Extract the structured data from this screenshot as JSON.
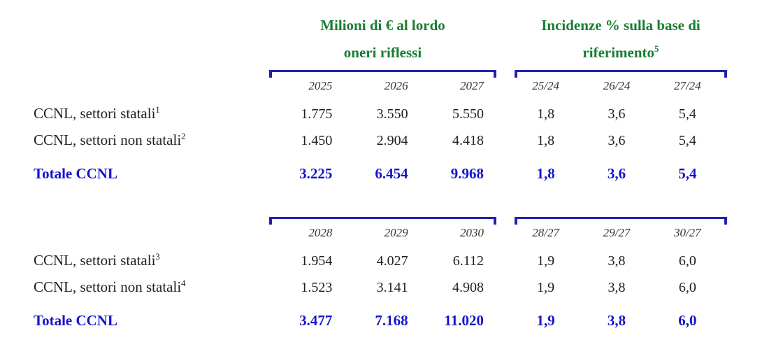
{
  "table": {
    "group_headers": [
      {
        "line1": "Milioni di € al lordo",
        "line2": "oneri riflessi",
        "line2_sup": ""
      },
      {
        "line1": "Incidenze % sulla base di",
        "line2": "riferimento",
        "line2_sup": "5"
      }
    ],
    "blocks": [
      {
        "left_columns": [
          "2025",
          "2026",
          "2027"
        ],
        "right_columns": [
          "25/24",
          "26/24",
          "27/24"
        ],
        "rows": [
          {
            "label": "CCNL, settori statali",
            "sup": "1",
            "millions": [
              "1.775",
              "3.550",
              "5.550"
            ],
            "pct": [
              "1,8",
              "3,6",
              "5,4"
            ]
          },
          {
            "label": "CCNL, settori non statali",
            "sup": "2",
            "millions": [
              "1.450",
              "2.904",
              "4.418"
            ],
            "pct": [
              "1,8",
              "3,6",
              "5,4"
            ]
          },
          {
            "label": "Totale CCNL",
            "sup": "",
            "millions": [
              "3.225",
              "6.454",
              "9.968"
            ],
            "pct": [
              "1,8",
              "3,6",
              "5,4"
            ],
            "is_total": true
          }
        ]
      },
      {
        "left_columns": [
          "2028",
          "2029",
          "2030"
        ],
        "right_columns": [
          "28/27",
          "29/27",
          "30/27"
        ],
        "rows": [
          {
            "label": "CCNL, settori statali",
            "sup": "3",
            "millions": [
              "1.954",
              "4.027",
              "6.112"
            ],
            "pct": [
              "1,9",
              "3,8",
              "6,0"
            ]
          },
          {
            "label": "CCNL, settori non statali",
            "sup": "4",
            "millions": [
              "1.523",
              "3.141",
              "4.908"
            ],
            "pct": [
              "1,9",
              "3,8",
              "6,0"
            ]
          },
          {
            "label": "Totale CCNL",
            "sup": "",
            "millions": [
              "3.477",
              "7.168",
              "11.020"
            ],
            "pct": [
              "1,9",
              "3,8",
              "6,0"
            ],
            "is_total": true
          }
        ]
      }
    ],
    "colors": {
      "green": "#1a7d33",
      "blue": "#1414cc",
      "bracket": "#2222b2",
      "text": "#1f1f1f",
      "muted": "#333333"
    }
  }
}
